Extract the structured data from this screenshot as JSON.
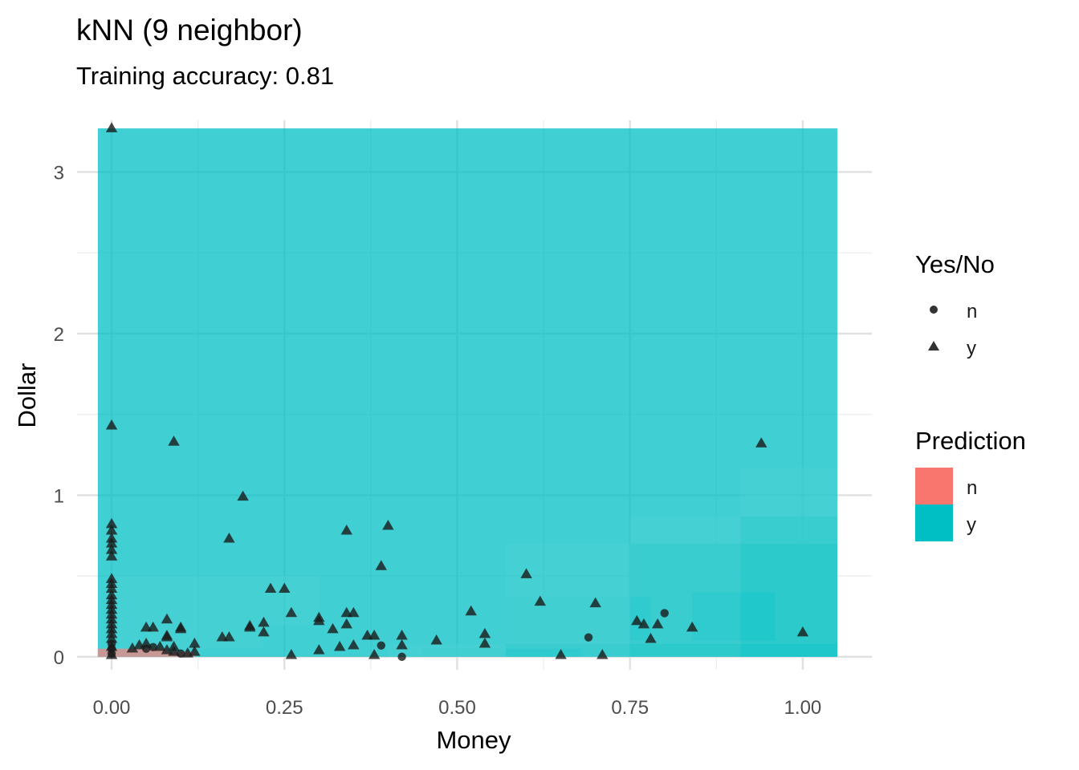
{
  "chart_data": {
    "type": "scatter",
    "title": "kNN (9 neighbor)",
    "subtitle": "Training accuracy: 0.81",
    "xlabel": "Money",
    "ylabel": "Dollar",
    "xlim": [
      -0.05,
      1.1
    ],
    "ylim": [
      -0.08,
      3.32
    ],
    "x_ticks": [
      {
        "value": 0,
        "label": "0.00"
      },
      {
        "value": 0.25,
        "label": "0.25"
      },
      {
        "value": 0.5,
        "label": "0.50"
      },
      {
        "value": 0.75,
        "label": "0.75"
      },
      {
        "value": 1.0,
        "label": "1.00"
      }
    ],
    "y_ticks": [
      {
        "value": 0,
        "label": "0"
      },
      {
        "value": 1,
        "label": "1"
      },
      {
        "value": 2,
        "label": "2"
      },
      {
        "value": 3,
        "label": "3"
      }
    ],
    "grid": true,
    "legend_position": "right",
    "colors": {
      "n": "#F8766D",
      "y": "#00BFC4",
      "points": "#1a1a1a"
    },
    "legends": {
      "shape": {
        "title": "Yes/No",
        "items": [
          {
            "label": "n",
            "shape": "circle"
          },
          {
            "label": "y",
            "shape": "triangle"
          }
        ]
      },
      "fill": {
        "title": "Prediction",
        "items": [
          {
            "label": "n",
            "key": "n"
          },
          {
            "label": "y",
            "key": "y"
          }
        ]
      }
    },
    "prediction_regions": [
      {
        "class": "y",
        "confidence": "high",
        "x": [
          -0.02,
          1.05
        ],
        "y": [
          0,
          3.27
        ]
      },
      {
        "class": "y",
        "confidence": "medium",
        "x": [
          0.0,
          0.3
        ],
        "y": [
          0.2,
          0.5
        ]
      },
      {
        "class": "y",
        "confidence": "medium",
        "x": [
          0.0,
          0.22
        ],
        "y": [
          0.05,
          0.2
        ]
      },
      {
        "class": "y",
        "confidence": "medium",
        "x": [
          0.57,
          1.05
        ],
        "y": [
          0.0,
          0.7
        ]
      },
      {
        "class": "y",
        "confidence": "medium",
        "x": [
          0.75,
          1.05
        ],
        "y": [
          0.0,
          0.87
        ]
      },
      {
        "class": "y",
        "confidence": "medium",
        "x": [
          0.91,
          1.05
        ],
        "y": [
          0.0,
          1.17
        ]
      },
      {
        "class": "y",
        "confidence": "medium",
        "x": [
          0.4,
          1.05
        ],
        "y": [
          0.0,
          0.08
        ]
      },
      {
        "class": "y",
        "confidence": "low",
        "x": [
          0.57,
          0.78
        ],
        "y": [
          0.1,
          0.37
        ]
      },
      {
        "class": "y",
        "confidence": "low",
        "x": [
          0.45,
          0.68
        ],
        "y": [
          0.0,
          0.05
        ]
      },
      {
        "class": "y",
        "confidence": "low",
        "x": [
          0.84,
          0.96
        ],
        "y": [
          0.1,
          0.4
        ]
      },
      {
        "class": "n",
        "confidence": "medium",
        "x": [
          -0.02,
          0.08
        ],
        "y": [
          0.0,
          0.05
        ]
      },
      {
        "class": "n",
        "confidence": "low",
        "x": [
          0.08,
          0.12
        ],
        "y": [
          0.0,
          0.03
        ]
      }
    ],
    "series": [
      {
        "name": "n",
        "marker": "circle",
        "points": [
          [
            0.05,
            0.05
          ],
          [
            0.06,
            0.06
          ],
          [
            0.39,
            0.07
          ],
          [
            0.42,
            0.0
          ],
          [
            0.69,
            0.12
          ],
          [
            0.8,
            0.27
          ],
          [
            0.0,
            0.02
          ],
          [
            0.0,
            0.05
          ],
          [
            0.0,
            0.08
          ],
          [
            0.1,
            0.02
          ]
        ]
      },
      {
        "name": "y",
        "marker": "triangle",
        "points": [
          [
            0.0,
            3.27
          ],
          [
            0.0,
            1.43
          ],
          [
            0.09,
            1.33
          ],
          [
            0.19,
            0.99
          ],
          [
            0.17,
            0.73
          ],
          [
            0.34,
            0.78
          ],
          [
            0.4,
            0.81
          ],
          [
            0.39,
            0.56
          ],
          [
            0.94,
            1.32
          ],
          [
            0.6,
            0.51
          ],
          [
            0.62,
            0.34
          ],
          [
            0.7,
            0.33
          ],
          [
            0.76,
            0.22
          ],
          [
            0.77,
            0.2
          ],
          [
            0.79,
            0.2
          ],
          [
            0.84,
            0.18
          ],
          [
            0.78,
            0.11
          ],
          [
            1.0,
            0.15
          ],
          [
            0.52,
            0.28
          ],
          [
            0.54,
            0.14
          ],
          [
            0.54,
            0.08
          ],
          [
            0.47,
            0.1
          ],
          [
            0.42,
            0.13
          ],
          [
            0.42,
            0.07
          ],
          [
            0.38,
            0.13
          ],
          [
            0.38,
            0.01
          ],
          [
            0.37,
            0.13
          ],
          [
            0.35,
            0.27
          ],
          [
            0.34,
            0.27
          ],
          [
            0.34,
            0.2
          ],
          [
            0.35,
            0.07
          ],
          [
            0.33,
            0.06
          ],
          [
            0.32,
            0.17
          ],
          [
            0.3,
            0.24
          ],
          [
            0.3,
            0.22
          ],
          [
            0.3,
            0.04
          ],
          [
            0.26,
            0.27
          ],
          [
            0.26,
            0.01
          ],
          [
            0.25,
            0.42
          ],
          [
            0.23,
            0.42
          ],
          [
            0.22,
            0.21
          ],
          [
            0.22,
            0.15
          ],
          [
            0.2,
            0.19
          ],
          [
            0.2,
            0.18
          ],
          [
            0.16,
            0.12
          ],
          [
            0.17,
            0.12
          ],
          [
            0.12,
            0.08
          ],
          [
            0.1,
            0.18
          ],
          [
            0.1,
            0.17
          ],
          [
            0.08,
            0.23
          ],
          [
            0.08,
            0.13
          ],
          [
            0.08,
            0.12
          ],
          [
            0.06,
            0.18
          ],
          [
            0.05,
            0.18
          ],
          [
            0.05,
            0.08
          ],
          [
            0.09,
            0.06
          ],
          [
            0.65,
            0.01
          ],
          [
            0.71,
            0.01
          ],
          [
            0.0,
            0.82
          ],
          [
            0.0,
            0.78
          ],
          [
            0.0,
            0.73
          ],
          [
            0.0,
            0.7
          ],
          [
            0.0,
            0.66
          ],
          [
            0.0,
            0.62
          ],
          [
            0.0,
            0.48
          ],
          [
            0.0,
            0.45
          ],
          [
            0.0,
            0.42
          ],
          [
            0.0,
            0.38
          ],
          [
            0.0,
            0.35
          ],
          [
            0.0,
            0.32
          ],
          [
            0.0,
            0.29
          ],
          [
            0.0,
            0.26
          ],
          [
            0.0,
            0.23
          ],
          [
            0.0,
            0.2
          ],
          [
            0.0,
            0.17
          ],
          [
            0.0,
            0.14
          ],
          [
            0.0,
            0.11
          ],
          [
            0.0,
            0.06
          ],
          [
            0.0,
            0.01
          ],
          [
            0.03,
            0.05
          ],
          [
            0.04,
            0.07
          ],
          [
            0.07,
            0.06
          ],
          [
            0.08,
            0.04
          ],
          [
            0.09,
            0.03
          ],
          [
            0.11,
            0.02
          ],
          [
            0.12,
            0.03
          ]
        ]
      }
    ]
  }
}
